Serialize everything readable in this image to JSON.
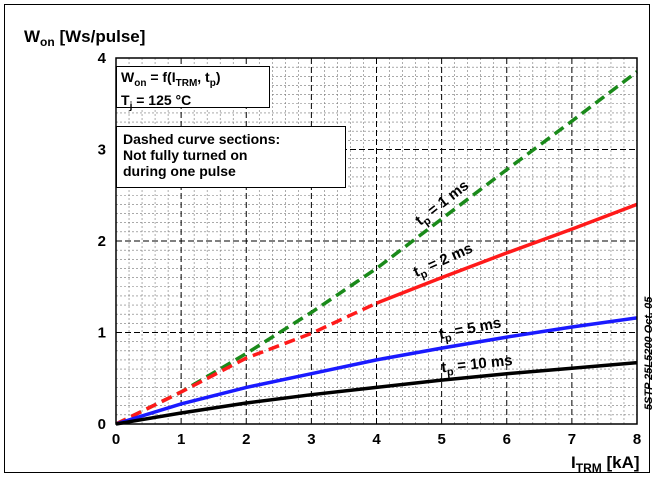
{
  "chart_data": {
    "type": "line",
    "ylabel": {
      "main": "W",
      "sub": "on",
      "unit": " [Ws/pulse]"
    },
    "xlabel": {
      "main": "I",
      "sub": "TRM",
      "unit": " [kA]"
    },
    "xlim": [
      0,
      8
    ],
    "ylim": [
      0,
      4
    ],
    "x_ticks": [
      "0",
      "1",
      "2",
      "3",
      "4",
      "5",
      "6",
      "7",
      "8"
    ],
    "y_ticks": [
      "0",
      "1",
      "2",
      "3",
      "4"
    ],
    "grid": true,
    "minor_grid": true,
    "formula": {
      "line1": {
        "a": "W",
        "a_sub": "on",
        "b": " = f(I",
        "b_sub": "TRM",
        "c": ", t",
        "c_sub": "p",
        "d": ")"
      },
      "line2": {
        "a": "T",
        "a_sub": "j",
        "b": " = 125 °C"
      }
    },
    "note": [
      "Dashed curve sections:",
      "Not fully turned on",
      "during one pulse"
    ],
    "watermark": "5STP 25L5200 Oct. 05",
    "series": [
      {
        "name": "1 ms",
        "label_prefix": "t",
        "label_sub": "p",
        "label_value": " = 1 ms",
        "color": "#1a8a1a",
        "dashed_from": 0,
        "x": [
          0,
          1,
          2,
          3,
          4,
          5,
          6,
          7,
          8
        ],
        "y": [
          0,
          0.35,
          0.77,
          1.22,
          1.7,
          2.24,
          2.78,
          3.31,
          3.85
        ]
      },
      {
        "name": "2 ms",
        "label_prefix": "t",
        "label_sub": "p",
        "label_value": " = 2 ms",
        "color": "#ff1a1a",
        "dashed_until": 4.0,
        "x": [
          0,
          1,
          2,
          3,
          4,
          5,
          6,
          7,
          8
        ],
        "y": [
          0,
          0.35,
          0.72,
          0.99,
          1.32,
          1.6,
          1.87,
          2.13,
          2.4
        ]
      },
      {
        "name": "5 ms",
        "label_prefix": "t",
        "label_sub": "p",
        "label_value": " = 5 ms",
        "color": "#1a1aff",
        "x": [
          0,
          1,
          2,
          3,
          4,
          5,
          6,
          7,
          8
        ],
        "y": [
          0,
          0.22,
          0.4,
          0.55,
          0.7,
          0.83,
          0.95,
          1.06,
          1.16
        ]
      },
      {
        "name": "10 ms",
        "label_prefix": "t",
        "label_sub": "p",
        "label_value": " = 10 ms",
        "color": "#000000",
        "x": [
          0,
          1,
          2,
          3,
          4,
          5,
          6,
          7,
          8
        ],
        "y": [
          0,
          0.12,
          0.23,
          0.32,
          0.4,
          0.48,
          0.55,
          0.61,
          0.67
        ]
      }
    ]
  }
}
